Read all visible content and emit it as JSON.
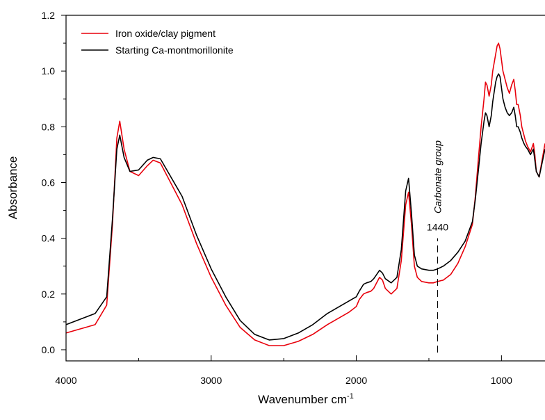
{
  "chart_data": {
    "type": "line",
    "title": "",
    "xlabel": "Wavenumber cm",
    "xlabel_superscript": "-1",
    "ylabel": "Absorbance",
    "xlim": [
      4000,
      700
    ],
    "ylim": [
      -0.04,
      1.2
    ],
    "x_reversed": true,
    "grid": false,
    "legend": "top-left",
    "x_ticks": [
      4000,
      3000,
      2000,
      1000
    ],
    "x_tick_labels": [
      "4000",
      "3000",
      "2000",
      "1000"
    ],
    "y_ticks": [
      0.0,
      0.2,
      0.4,
      0.6,
      0.8,
      1.0,
      1.2
    ],
    "y_tick_labels": [
      "0.0",
      "0.2",
      "0.4",
      "0.6",
      "0.8",
      "1.0",
      "1.2"
    ],
    "annotations": [
      {
        "label": "1440",
        "x": 1440,
        "y": 0.44
      },
      {
        "label": "Carbonate group",
        "x": 1440,
        "y": 0.62,
        "rotation": -90
      }
    ],
    "marker_line": {
      "x": 1440,
      "y_from": -0.01,
      "y_to": 0.4
    },
    "series": [
      {
        "name": "Iron oxide/clay pigment",
        "color": "#e8000b",
        "x": [
          4000,
          3900,
          3800,
          3720,
          3680,
          3650,
          3630,
          3600,
          3560,
          3500,
          3440,
          3400,
          3350,
          3300,
          3200,
          3100,
          3000,
          2900,
          2800,
          2700,
          2600,
          2500,
          2400,
          2300,
          2200,
          2100,
          2050,
          2000,
          1980,
          1950,
          1930,
          1900,
          1880,
          1860,
          1840,
          1820,
          1800,
          1760,
          1720,
          1690,
          1660,
          1640,
          1620,
          1600,
          1580,
          1550,
          1500,
          1470,
          1440,
          1400,
          1350,
          1300,
          1250,
          1200,
          1180,
          1160,
          1140,
          1120,
          1110,
          1100,
          1085,
          1070,
          1060,
          1040,
          1030,
          1020,
          1010,
          1000,
          990,
          975,
          960,
          945,
          930,
          915,
          905,
          895,
          885,
          870,
          860,
          845,
          835,
          820,
          800,
          780,
          770,
          760,
          740,
          720,
          700
        ],
        "y": [
          0.06,
          0.075,
          0.09,
          0.16,
          0.45,
          0.76,
          0.82,
          0.72,
          0.64,
          0.625,
          0.66,
          0.68,
          0.67,
          0.62,
          0.52,
          0.38,
          0.26,
          0.16,
          0.08,
          0.035,
          0.015,
          0.015,
          0.03,
          0.055,
          0.09,
          0.12,
          0.135,
          0.155,
          0.18,
          0.2,
          0.205,
          0.21,
          0.22,
          0.24,
          0.26,
          0.25,
          0.22,
          0.2,
          0.22,
          0.32,
          0.52,
          0.565,
          0.45,
          0.3,
          0.26,
          0.245,
          0.24,
          0.24,
          0.245,
          0.25,
          0.27,
          0.31,
          0.37,
          0.45,
          0.55,
          0.68,
          0.8,
          0.9,
          0.96,
          0.95,
          0.91,
          0.95,
          1.0,
          1.06,
          1.09,
          1.1,
          1.08,
          1.04,
          1.0,
          0.97,
          0.94,
          0.92,
          0.95,
          0.97,
          0.93,
          0.88,
          0.88,
          0.84,
          0.8,
          0.77,
          0.75,
          0.73,
          0.71,
          0.74,
          0.7,
          0.64,
          0.62,
          0.68,
          0.74
        ]
      },
      {
        "name": "Starting Ca-montmorillonite",
        "color": "#000000",
        "x": [
          4000,
          3900,
          3800,
          3720,
          3680,
          3650,
          3630,
          3600,
          3560,
          3500,
          3440,
          3400,
          3350,
          3300,
          3200,
          3100,
          3000,
          2900,
          2800,
          2700,
          2600,
          2500,
          2400,
          2300,
          2200,
          2100,
          2050,
          2000,
          1980,
          1950,
          1930,
          1900,
          1880,
          1860,
          1840,
          1820,
          1800,
          1760,
          1720,
          1690,
          1660,
          1640,
          1620,
          1600,
          1580,
          1550,
          1500,
          1470,
          1440,
          1400,
          1350,
          1300,
          1250,
          1200,
          1180,
          1160,
          1140,
          1120,
          1110,
          1100,
          1085,
          1070,
          1060,
          1040,
          1030,
          1020,
          1010,
          1000,
          990,
          975,
          960,
          945,
          930,
          915,
          905,
          895,
          885,
          870,
          860,
          845,
          835,
          820,
          800,
          780,
          770,
          760,
          740,
          720,
          700
        ],
        "y": [
          0.09,
          0.11,
          0.13,
          0.19,
          0.47,
          0.72,
          0.77,
          0.69,
          0.64,
          0.645,
          0.68,
          0.69,
          0.685,
          0.64,
          0.55,
          0.41,
          0.29,
          0.19,
          0.105,
          0.055,
          0.035,
          0.04,
          0.06,
          0.09,
          0.13,
          0.16,
          0.175,
          0.19,
          0.21,
          0.235,
          0.24,
          0.245,
          0.255,
          0.27,
          0.285,
          0.275,
          0.255,
          0.24,
          0.26,
          0.36,
          0.57,
          0.615,
          0.49,
          0.34,
          0.3,
          0.29,
          0.285,
          0.285,
          0.29,
          0.3,
          0.32,
          0.35,
          0.39,
          0.46,
          0.54,
          0.64,
          0.74,
          0.82,
          0.85,
          0.84,
          0.8,
          0.84,
          0.89,
          0.96,
          0.98,
          0.99,
          0.98,
          0.94,
          0.9,
          0.87,
          0.85,
          0.84,
          0.85,
          0.87,
          0.84,
          0.8,
          0.8,
          0.78,
          0.76,
          0.74,
          0.73,
          0.72,
          0.7,
          0.72,
          0.68,
          0.64,
          0.62,
          0.67,
          0.72
        ]
      }
    ]
  }
}
